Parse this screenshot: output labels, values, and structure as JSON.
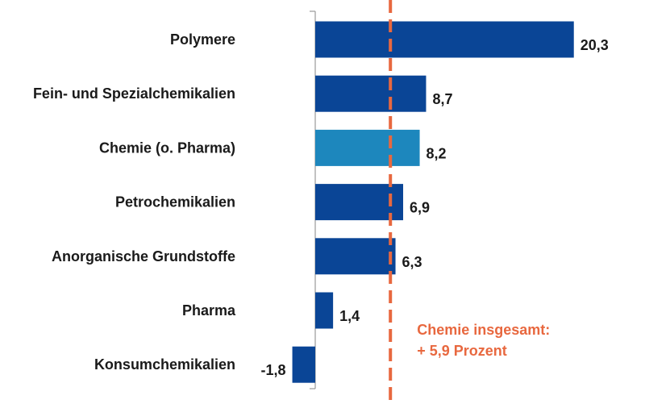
{
  "chart_data": {
    "type": "bar",
    "orientation": "horizontal",
    "categories": [
      "Polymere",
      "Fein- und Spezialchemikalien",
      "Chemie (o. Pharma)",
      "Petrochemikalien",
      "Anorganische Grundstoffe",
      "Pharma",
      "Konsumchemikalien"
    ],
    "values": [
      20.3,
      8.7,
      8.2,
      6.9,
      6.3,
      1.4,
      -1.8
    ],
    "value_labels": [
      "20,3",
      "8,7",
      "8,2",
      "6,9",
      "6,3",
      "1,4",
      "-1,8"
    ],
    "highlight_index": 2,
    "colors": {
      "bar": "#0a4596",
      "highlight": "#1d87bd",
      "reference_line": "#e8683f",
      "axis": "#999999"
    },
    "reference": {
      "value": 5.9,
      "label_line1": "Chemie insgesamt:",
      "label_line2": "+ 5,9 Prozent"
    },
    "xlim": [
      -2,
      25
    ],
    "title": "",
    "xlabel": "",
    "ylabel": ""
  }
}
